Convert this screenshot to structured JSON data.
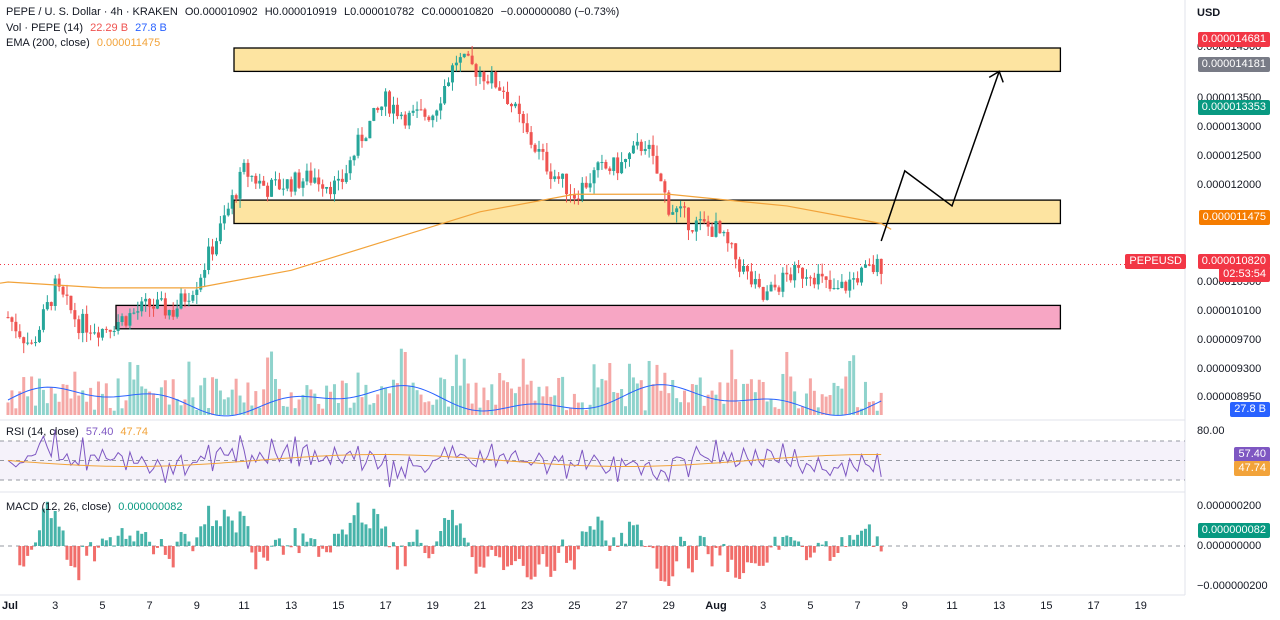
{
  "header": {
    "symbol": "PEPE / U. S. Dollar · 4h · KRAKEN",
    "ohlc": {
      "o": "O0.000010902",
      "h": "H0.000010919",
      "l": "L0.000010782",
      "c": "C0.000010820",
      "chg": "−0.000000080 (−0.73%)"
    },
    "vol_label": "Vol · PEPE (14)",
    "vol_val1": "22.29 B",
    "vol_val2": "27.8 B",
    "ema_label": "EMA (200, close)",
    "ema_val": "0.000011475",
    "rsi_label": "RSI (14, close)",
    "rsi_val1": "57.40",
    "rsi_val2": "47.74",
    "macd_label": "MACD (12, 26, close)",
    "macd_val": "0.000000082",
    "currency": "USD"
  },
  "colors": {
    "up": "#26a69a",
    "down": "#ef5350",
    "ema": "#f2a33a",
    "zone_yellow": "#fde4a1",
    "zone_pink": "#f7a6c4",
    "rsi": "#7e57c2",
    "volma": "#2962ff"
  },
  "price_axis": {
    "ticks": [
      "0.000014500",
      "0.000013500",
      "0.000013000",
      "0.000012500",
      "0.000012000",
      "0.000010500",
      "0.000010100",
      "0.000009700",
      "0.000009300",
      "0.000008950"
    ],
    "tags": [
      {
        "text": "0.000014681",
        "color": "#f23645"
      },
      {
        "text": "0.000014181",
        "color": "#787b86"
      },
      {
        "text": "0.000013353",
        "color": "#089981"
      },
      {
        "text": "0.000011475",
        "color": "#f57c00"
      },
      {
        "text": "0.000010820",
        "color": "#f23645"
      },
      {
        "text": "02:53:54",
        "color": "#f23645"
      },
      {
        "text": "27.8 B",
        "color": "#2962ff"
      }
    ],
    "symbol_tag": "PEPEUSD"
  },
  "rsi_axis": {
    "top": "80.00",
    "val1": "57.40",
    "val2": "47.74"
  },
  "macd_axis": {
    "top": "0.000000200",
    "mid": "0.000000000",
    "bot": "−0.000000200",
    "val": "0.000000082"
  },
  "x_axis": [
    "Jul",
    "3",
    "5",
    "7",
    "9",
    "11",
    "13",
    "15",
    "17",
    "19",
    "21",
    "23",
    "25",
    "27",
    "29",
    "Aug",
    "3",
    "5",
    "7",
    "9",
    "11",
    "13",
    "15",
    "17",
    "19"
  ],
  "chart_data": {
    "type": "candlestick",
    "title": "PEPE / U. S. Dollar · 4h · KRAKEN",
    "x_range": [
      "Jul 1",
      "Aug 19"
    ],
    "ylim": [
      8.8e-06,
      1.48e-05
    ],
    "series": [
      {
        "name": "PEPE / U. S. Dollar",
        "approx_close_path": [
          [
            "Jul 1",
            9.9e-06
          ],
          [
            "Jul 2",
            9.4e-06
          ],
          [
            "Jul 3",
            1.04e-05
          ],
          [
            "Jul 4",
            9.8e-06
          ],
          [
            "Jul 5",
            9.7e-06
          ],
          [
            "Jul 6",
            9.9e-06
          ],
          [
            "Jul 7",
            1.01e-05
          ],
          [
            "Jul 8",
            1e-05
          ],
          [
            "Jul 9",
            1.05e-05
          ],
          [
            "Jul 10",
            1.14e-05
          ],
          [
            "Jul 11",
            1.24e-05
          ],
          [
            "Jul 12",
            1.21e-05
          ],
          [
            "Jul 13",
            1.22e-05
          ],
          [
            "Jul 14",
            1.23e-05
          ],
          [
            "Jul 15",
            1.21e-05
          ],
          [
            "Jul 16",
            1.3e-05
          ],
          [
            "Jul 17",
            1.36e-05
          ],
          [
            "Jul 18",
            1.33e-05
          ],
          [
            "Jul 19",
            1.34e-05
          ],
          [
            "Jul 20",
            1.43e-05
          ],
          [
            "Jul 21",
            1.41e-05
          ],
          [
            "Jul 22",
            1.38e-05
          ],
          [
            "Jul 23",
            1.3e-05
          ],
          [
            "Jul 24",
            1.24e-05
          ],
          [
            "Jul 25",
            1.2e-05
          ],
          [
            "Jul 26",
            1.24e-05
          ],
          [
            "Jul 27",
            1.25e-05
          ],
          [
            "Jul 28",
            1.29e-05
          ],
          [
            "Jul 29",
            1.18e-05
          ],
          [
            "Jul 30",
            1.15e-05
          ],
          [
            "Jul 31",
            1.14e-05
          ],
          [
            "Aug 1",
            1.08e-05
          ],
          [
            "Aug 2",
            1.02e-05
          ],
          [
            "Aug 3",
            1.06e-05
          ],
          [
            "Aug 4",
            1.07e-05
          ],
          [
            "Aug 5",
            1.03e-05
          ],
          [
            "Aug 6",
            1.06e-05
          ],
          [
            "Aug 7",
            1.08e-05
          ]
        ]
      },
      {
        "name": "EMA (200, close)",
        "approx_path": [
          [
            "Jul 1",
            1.05e-05
          ],
          [
            "Jul 5",
            1.04e-05
          ],
          [
            "Jul 9",
            1.04e-05
          ],
          [
            "Jul 13",
            1.07e-05
          ],
          [
            "Jul 17",
            1.12e-05
          ],
          [
            "Jul 21",
            1.17e-05
          ],
          [
            "Jul 25",
            1.2e-05
          ],
          [
            "Jul 29",
            1.2e-05
          ],
          [
            "Aug 3",
            1.18e-05
          ],
          [
            "Aug 7",
            1.15e-05
          ]
        ]
      }
    ],
    "zones": [
      {
        "color": "yellow",
        "from": 1.41e-05,
        "to": 1.45e-05,
        "start": "Jul 11",
        "end": "Aug 14"
      },
      {
        "color": "yellow",
        "from": 1.15e-05,
        "to": 1.19e-05,
        "start": "Jul 11",
        "end": "Aug 14"
      },
      {
        "color": "pink",
        "from": 9.7e-06,
        "to": 1.01e-05,
        "start": "Jul 6",
        "end": "Aug 14"
      }
    ],
    "projection": [
      [
        "Aug 7",
        1.12e-05
      ],
      [
        "Aug 8",
        1.24e-05
      ],
      [
        "Aug 10",
        1.18e-05
      ],
      [
        "Aug 12",
        1.41e-05
      ]
    ],
    "volume": {
      "name": "Vol · PEPE (14)",
      "last": "22.29 B",
      "ma": "27.8 B"
    },
    "rsi": {
      "name": "RSI (14, close)",
      "values": {
        "rsi": 57.4,
        "ma": 47.74
      },
      "levels": [
        70,
        50,
        30
      ]
    },
    "macd": {
      "name": "MACD (12, 26, close)",
      "last": 8.2e-08
    }
  }
}
